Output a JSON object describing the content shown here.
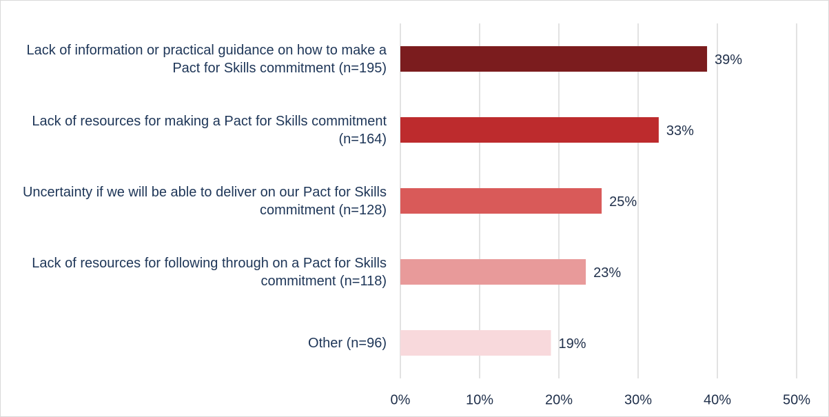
{
  "chart_data": {
    "type": "bar",
    "orientation": "horizontal",
    "categories": [
      "Lack of information or practical guidance on how to make a Pact for Skills commitment (n=195)",
      "Lack of resources for making a Pact for Skills commitment (n=164)",
      "Uncertainty if we will be able to deliver on our Pact for Skills commitment (n=128)",
      "Lack of resources for following through on a Pact for Skills commitment (n=118)",
      "Other (n=96)"
    ],
    "values": [
      38.7,
      32.6,
      25.4,
      23.4,
      19.0
    ],
    "value_labels": [
      "39%",
      "33%",
      "25%",
      "23%",
      "19%"
    ],
    "colors": [
      "#7b1c1e",
      "#bd2b2d",
      "#d95a59",
      "#e89a9a",
      "#f8d9dc"
    ],
    "xlim": [
      0,
      50
    ],
    "xticks": [
      {
        "value": 0,
        "label": "0%"
      },
      {
        "value": 10,
        "label": "10%"
      },
      {
        "value": 20,
        "label": "20%"
      },
      {
        "value": 30,
        "label": "30%"
      },
      {
        "value": 40,
        "label": "40%"
      },
      {
        "value": 50,
        "label": "50%"
      }
    ],
    "grid": true
  }
}
